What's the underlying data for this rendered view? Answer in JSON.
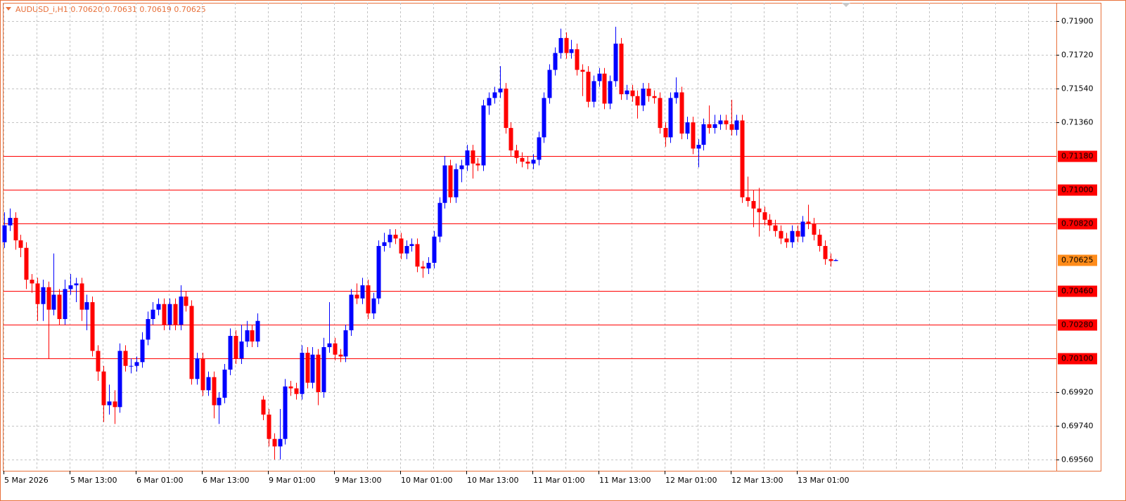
{
  "header": {
    "title": "AUDUSD_i,H1  0.70620 0.70631 0.70619 0.70625"
  },
  "chart_data": {
    "type": "candlestick",
    "up_color": "#0000ff",
    "down_color": "#ff0000",
    "grid": true,
    "ylim": [
      0.695,
      0.71998
    ],
    "yticks": [
      {
        "value": 0.719,
        "label": "0.71900"
      },
      {
        "value": 0.7172,
        "label": "0.71720"
      },
      {
        "value": 0.7154,
        "label": "0.71540"
      },
      {
        "value": 0.7136,
        "label": "0.71360"
      },
      {
        "value": 0.6992,
        "label": "0.69920"
      },
      {
        "value": 0.6974,
        "label": "0.69740"
      },
      {
        "value": 0.6956,
        "label": "0.69560"
      }
    ],
    "levels": [
      {
        "value": 0.7118,
        "label": "0.71180"
      },
      {
        "value": 0.71,
        "label": "0.71000"
      },
      {
        "value": 0.7082,
        "label": "0.70820"
      },
      {
        "value": 0.7046,
        "label": "0.70460"
      },
      {
        "value": 0.7028,
        "label": "0.70280"
      },
      {
        "value": 0.701,
        "label": "0.70100"
      }
    ],
    "level_color": "#ff0000",
    "current_price": {
      "value": 0.70625,
      "label": "0.70625"
    },
    "current_color": "#ff8c1a",
    "xlabels": [
      "5 Mar 2026",
      "5 Mar 13:00",
      "6 Mar 01:00",
      "6 Mar 13:00",
      "9 Mar 01:00",
      "9 Mar 13:00",
      "10 Mar 01:00",
      "10 Mar 13:00",
      "11 Mar 01:00",
      "11 Mar 13:00",
      "12 Mar 01:00",
      "12 Mar 13:00",
      "13 Mar 01:00"
    ],
    "candles": [
      [
        0.7072,
        0.7088,
        0.7069,
        0.7081
      ],
      [
        0.7081,
        0.709,
        0.7078,
        0.7085
      ],
      [
        0.7085,
        0.7088,
        0.7068,
        0.7073
      ],
      [
        0.7073,
        0.7076,
        0.7064,
        0.7069
      ],
      [
        0.7069,
        0.7072,
        0.7047,
        0.7052
      ],
      [
        0.7052,
        0.7055,
        0.7045,
        0.705
      ],
      [
        0.705,
        0.7053,
        0.703,
        0.7039
      ],
      [
        0.7039,
        0.7052,
        0.703,
        0.7048
      ],
      [
        0.7048,
        0.7051,
        0.701,
        0.7036
      ],
      [
        0.7036,
        0.7066,
        0.7033,
        0.7044
      ],
      [
        0.7044,
        0.7047,
        0.7028,
        0.7031
      ],
      [
        0.7031,
        0.7052,
        0.7028,
        0.7047
      ],
      [
        0.7047,
        0.7055,
        0.7044,
        0.7049
      ],
      [
        0.7049,
        0.7053,
        0.704,
        0.705
      ],
      [
        0.705,
        0.7053,
        0.703,
        0.7036
      ],
      [
        0.7036,
        0.7044,
        0.7025,
        0.704
      ],
      [
        0.704,
        0.7043,
        0.7011,
        0.7014
      ],
      [
        0.7014,
        0.7017,
        0.6998,
        0.7003
      ],
      [
        0.7003,
        0.7006,
        0.6976,
        0.6985
      ],
      [
        0.6985,
        0.6996,
        0.698,
        0.6987
      ],
      [
        0.6987,
        0.6993,
        0.6975,
        0.6984
      ],
      [
        0.6984,
        0.7018,
        0.6981,
        0.7014
      ],
      [
        0.7014,
        0.7017,
        0.7003,
        0.7006
      ],
      [
        0.7006,
        0.701,
        0.7002,
        0.7006
      ],
      [
        0.7006,
        0.7011,
        0.7003,
        0.7008
      ],
      [
        0.7008,
        0.7024,
        0.7005,
        0.702
      ],
      [
        0.702,
        0.7035,
        0.7017,
        0.7031
      ],
      [
        0.7031,
        0.704,
        0.7028,
        0.7036
      ],
      [
        0.7036,
        0.7042,
        0.7033,
        0.7039
      ],
      [
        0.7039,
        0.7042,
        0.7025,
        0.7028
      ],
      [
        0.7028,
        0.7042,
        0.7025,
        0.7039
      ],
      [
        0.7039,
        0.7042,
        0.7025,
        0.7028
      ],
      [
        0.7028,
        0.7049,
        0.7025,
        0.7043
      ],
      [
        0.7043,
        0.7046,
        0.7035,
        0.7038
      ],
      [
        0.7038,
        0.7041,
        0.6996,
        0.6999
      ],
      [
        0.6999,
        0.7013,
        0.6996,
        0.701
      ],
      [
        0.701,
        0.7013,
        0.699,
        0.6993
      ],
      [
        0.6993,
        0.7003,
        0.699,
        0.7
      ],
      [
        0.7,
        0.7003,
        0.6978,
        0.6985
      ],
      [
        0.6985,
        0.6992,
        0.6975,
        0.6989
      ],
      [
        0.6989,
        0.7007,
        0.6986,
        0.7004
      ],
      [
        0.7004,
        0.7026,
        0.7001,
        0.7022
      ],
      [
        0.7022,
        0.7025,
        0.7007,
        0.701
      ],
      [
        0.701,
        0.7028,
        0.7007,
        0.7019
      ],
      [
        0.7019,
        0.703,
        0.7016,
        0.7025
      ],
      [
        0.7025,
        0.7028,
        0.7016,
        0.7019
      ],
      [
        0.7019,
        0.7034,
        0.7016,
        0.703
      ],
      [
        0.6988,
        0.699,
        0.6977,
        0.698
      ],
      [
        0.698,
        0.6983,
        0.6963,
        0.6967
      ],
      [
        0.6967,
        0.697,
        0.6956,
        0.6963
      ],
      [
        0.6963,
        0.6983,
        0.6956,
        0.6967
      ],
      [
        0.6967,
        0.6999,
        0.6964,
        0.6995
      ],
      [
        0.6995,
        0.6998,
        0.699,
        0.6994
      ],
      [
        0.6994,
        0.6997,
        0.6988,
        0.6991
      ],
      [
        0.6991,
        0.7017,
        0.6988,
        0.7013
      ],
      [
        0.7013,
        0.7016,
        0.6994,
        0.6997
      ],
      [
        0.6997,
        0.7016,
        0.6994,
        0.7012
      ],
      [
        0.7012,
        0.7015,
        0.6985,
        0.6992
      ],
      [
        0.6992,
        0.7021,
        0.6989,
        0.7016
      ],
      [
        0.7016,
        0.704,
        0.7013,
        0.7018
      ],
      [
        0.7018,
        0.7021,
        0.7009,
        0.7012
      ],
      [
        0.7012,
        0.7015,
        0.7008,
        0.7011
      ],
      [
        0.7011,
        0.7028,
        0.7008,
        0.7025
      ],
      [
        0.7025,
        0.7047,
        0.7022,
        0.7044
      ],
      [
        0.7044,
        0.705,
        0.7039,
        0.7042
      ],
      [
        0.7042,
        0.7053,
        0.7039,
        0.7049
      ],
      [
        0.7049,
        0.7052,
        0.7031,
        0.7034
      ],
      [
        0.7034,
        0.7045,
        0.7031,
        0.7042
      ],
      [
        0.7042,
        0.7073,
        0.7039,
        0.707
      ],
      [
        0.707,
        0.7077,
        0.7067,
        0.7072
      ],
      [
        0.7072,
        0.7079,
        0.7069,
        0.7076
      ],
      [
        0.7076,
        0.7079,
        0.7071,
        0.7074
      ],
      [
        0.7074,
        0.7077,
        0.7063,
        0.7066
      ],
      [
        0.7066,
        0.7073,
        0.7063,
        0.707
      ],
      [
        0.707,
        0.7074,
        0.7067,
        0.7071
      ],
      [
        0.7071,
        0.7074,
        0.7056,
        0.7059
      ],
      [
        0.7059,
        0.7062,
        0.7053,
        0.7058
      ],
      [
        0.7058,
        0.7064,
        0.7055,
        0.7061
      ],
      [
        0.7061,
        0.7078,
        0.7058,
        0.7075
      ],
      [
        0.7075,
        0.7096,
        0.7072,
        0.7093
      ],
      [
        0.7093,
        0.7118,
        0.709,
        0.7113
      ],
      [
        0.7113,
        0.7116,
        0.7093,
        0.7096
      ],
      [
        0.7096,
        0.7114,
        0.7093,
        0.7111
      ],
      [
        0.7111,
        0.7116,
        0.7104,
        0.7113
      ],
      [
        0.7113,
        0.7124,
        0.711,
        0.7121
      ],
      [
        0.7121,
        0.7124,
        0.7106,
        0.7114
      ],
      [
        0.7114,
        0.7117,
        0.711,
        0.7113
      ],
      [
        0.7113,
        0.7148,
        0.711,
        0.7145
      ],
      [
        0.7145,
        0.7152,
        0.714,
        0.7149
      ],
      [
        0.7149,
        0.7155,
        0.7146,
        0.7152
      ],
      [
        0.7152,
        0.7166,
        0.7149,
        0.7154
      ],
      [
        0.7154,
        0.7157,
        0.713,
        0.7133
      ],
      [
        0.7133,
        0.7136,
        0.7118,
        0.7121
      ],
      [
        0.7121,
        0.7124,
        0.7114,
        0.7117
      ],
      [
        0.7117,
        0.712,
        0.7112,
        0.7115
      ],
      [
        0.7115,
        0.7118,
        0.7111,
        0.7114
      ],
      [
        0.7114,
        0.7119,
        0.7111,
        0.7116
      ],
      [
        0.7116,
        0.7131,
        0.7113,
        0.7128
      ],
      [
        0.7128,
        0.7152,
        0.7125,
        0.7149
      ],
      [
        0.7149,
        0.7167,
        0.7146,
        0.7164
      ],
      [
        0.7164,
        0.7176,
        0.7161,
        0.7173
      ],
      [
        0.7173,
        0.7186,
        0.717,
        0.7181
      ],
      [
        0.7181,
        0.7184,
        0.717,
        0.7173
      ],
      [
        0.7173,
        0.718,
        0.717,
        0.7175
      ],
      [
        0.7175,
        0.7178,
        0.7161,
        0.7164
      ],
      [
        0.7164,
        0.7167,
        0.715,
        0.7163
      ],
      [
        0.7163,
        0.7166,
        0.7144,
        0.7147
      ],
      [
        0.7147,
        0.7161,
        0.7144,
        0.7158
      ],
      [
        0.7158,
        0.7165,
        0.7155,
        0.7162
      ],
      [
        0.7162,
        0.7165,
        0.7143,
        0.7146
      ],
      [
        0.7146,
        0.7161,
        0.7143,
        0.7158
      ],
      [
        0.7158,
        0.7187,
        0.7155,
        0.7178
      ],
      [
        0.7178,
        0.7181,
        0.7148,
        0.7151
      ],
      [
        0.7151,
        0.7156,
        0.7148,
        0.7153
      ],
      [
        0.7153,
        0.7156,
        0.7147,
        0.715
      ],
      [
        0.715,
        0.7153,
        0.7138,
        0.7145
      ],
      [
        0.7145,
        0.7157,
        0.7142,
        0.7154
      ],
      [
        0.7154,
        0.7157,
        0.7147,
        0.715
      ],
      [
        0.715,
        0.7153,
        0.7146,
        0.7149
      ],
      [
        0.7149,
        0.7152,
        0.713,
        0.7133
      ],
      [
        0.7133,
        0.7136,
        0.7123,
        0.7128
      ],
      [
        0.7128,
        0.7152,
        0.7125,
        0.7149
      ],
      [
        0.7149,
        0.716,
        0.7146,
        0.7152
      ],
      [
        0.7152,
        0.7155,
        0.7127,
        0.713
      ],
      [
        0.713,
        0.7139,
        0.7127,
        0.7136
      ],
      [
        0.7136,
        0.7139,
        0.7119,
        0.7122
      ],
      [
        0.7122,
        0.7127,
        0.7112,
        0.7124
      ],
      [
        0.7124,
        0.7138,
        0.7121,
        0.7135
      ],
      [
        0.7135,
        0.7145,
        0.713,
        0.7133
      ],
      [
        0.7133,
        0.714,
        0.713,
        0.7135
      ],
      [
        0.7135,
        0.714,
        0.7132,
        0.7137
      ],
      [
        0.7137,
        0.714,
        0.7132,
        0.7135
      ],
      [
        0.7135,
        0.7148,
        0.7129,
        0.7132
      ],
      [
        0.7132,
        0.714,
        0.7129,
        0.7137
      ],
      [
        0.7137,
        0.714,
        0.7093,
        0.7096
      ],
      [
        0.7096,
        0.7107,
        0.7091,
        0.7094
      ],
      [
        0.7094,
        0.71,
        0.708,
        0.709
      ],
      [
        0.709,
        0.7101,
        0.7075,
        0.7088
      ],
      [
        0.7088,
        0.7091,
        0.7081,
        0.7084
      ],
      [
        0.7084,
        0.7087,
        0.7078,
        0.7081
      ],
      [
        0.7081,
        0.7084,
        0.7075,
        0.7078
      ],
      [
        0.7078,
        0.7081,
        0.7071,
        0.7074
      ],
      [
        0.7074,
        0.7077,
        0.7069,
        0.7072
      ],
      [
        0.7072,
        0.7081,
        0.7069,
        0.7078
      ],
      [
        0.7078,
        0.7081,
        0.7072,
        0.7075
      ],
      [
        0.7075,
        0.7086,
        0.7072,
        0.7083
      ],
      [
        0.7083,
        0.7092,
        0.7079,
        0.7082
      ],
      [
        0.7082,
        0.7085,
        0.7073,
        0.7076
      ],
      [
        0.7076,
        0.7079,
        0.7067,
        0.707
      ],
      [
        0.707,
        0.7073,
        0.706,
        0.7063
      ],
      [
        0.7063,
        0.7066,
        0.7059,
        0.7062
      ],
      [
        0.7062,
        0.70631,
        0.70619,
        0.70625
      ]
    ]
  }
}
